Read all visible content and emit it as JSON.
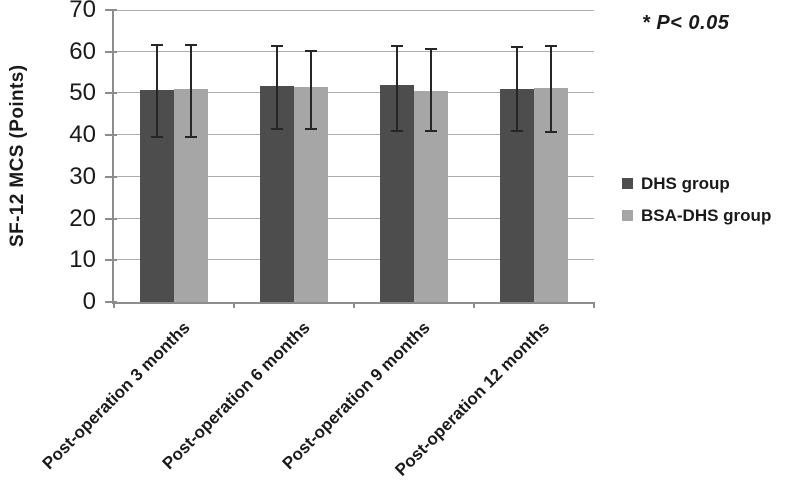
{
  "chart_data": {
    "type": "bar",
    "title": "",
    "ylabel": "SF-12 MCS (Points)",
    "xlabel": "",
    "ylim": [
      0,
      70
    ],
    "ytick_interval": 10,
    "yticks": [
      0,
      10,
      20,
      30,
      40,
      50,
      60,
      70
    ],
    "grid": true,
    "legend_position": "right",
    "annotation": "* P< 0.05",
    "categories": [
      "Post-operation 3 months",
      "Post-operation 6 months",
      "Post-operation 9 months",
      "Post-operation 12 months"
    ],
    "series": [
      {
        "name": "DHS group",
        "color": "#4d4d4d",
        "values": [
          50.8,
          51.7,
          52.0,
          51.1
        ],
        "error_low": [
          39.5,
          41.5,
          41.0,
          40.9
        ],
        "error_high": [
          61.7,
          61.4,
          61.3,
          61.2
        ]
      },
      {
        "name": "BSA-DHS group",
        "color": "#a6a6a6",
        "values": [
          51.1,
          51.6,
          50.6,
          51.2
        ],
        "error_low": [
          39.5,
          41.4,
          41.0,
          40.8
        ],
        "error_high": [
          61.7,
          60.2,
          60.7,
          61.3
        ]
      }
    ],
    "colors": {
      "gridline": "#adadad",
      "axis": "#8c8c8c",
      "error_bar": "#262626",
      "text": "#1a1a1a"
    }
  }
}
